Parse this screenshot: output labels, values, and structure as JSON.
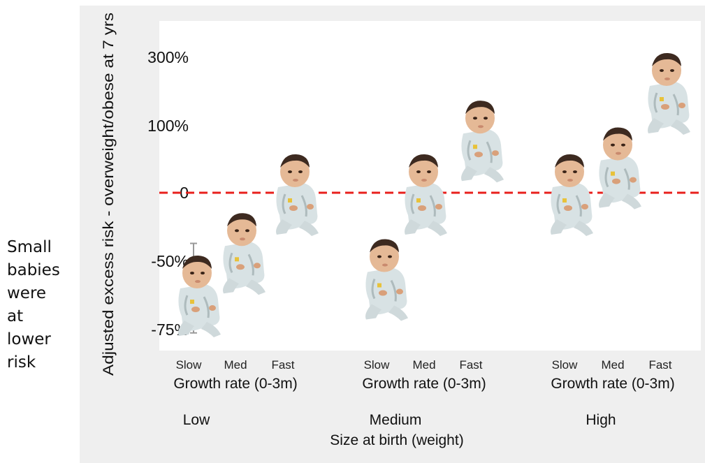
{
  "side_note": [
    "Small",
    "babies",
    "were",
    "at",
    "lower",
    "risk"
  ],
  "chart_data": {
    "type": "scatter",
    "ylabel": "Adjusted excess risk - overweight/obese at 7 yrs",
    "xlabel": "Size at birth (weight)",
    "y_ticks": [
      "300%",
      "100%",
      "0",
      "-50%",
      "-75%"
    ],
    "reference_line": {
      "value": "0",
      "style": "dashed",
      "color": "#e8201c"
    },
    "marker": "baby-photo",
    "groups": [
      {
        "name": "Low",
        "sublabel": "Growth rate (0-3m)",
        "categories": [
          "Slow",
          "Med",
          "Fast"
        ],
        "values": [
          "-62%",
          "-43%",
          "0"
        ],
        "error_bar": {
          "category": "Slow",
          "low": "-79%",
          "high": "-37%"
        }
      },
      {
        "name": "Medium",
        "sublabel": "Growth rate (0-3m)",
        "categories": [
          "Slow",
          "Med",
          "Fast"
        ],
        "values": [
          "-56%",
          "0",
          "80%"
        ]
      },
      {
        "name": "High",
        "sublabel": "Growth rate (0-3m)",
        "categories": [
          "Slow",
          "Med",
          "Fast"
        ],
        "values": [
          "0",
          "40%",
          "200%"
        ]
      }
    ],
    "colors": {
      "panel": "#efefef",
      "plot": "#ffffff",
      "zero_line": "#e8201c",
      "error_bar": "#999999"
    },
    "grid": false,
    "legend": "none"
  }
}
